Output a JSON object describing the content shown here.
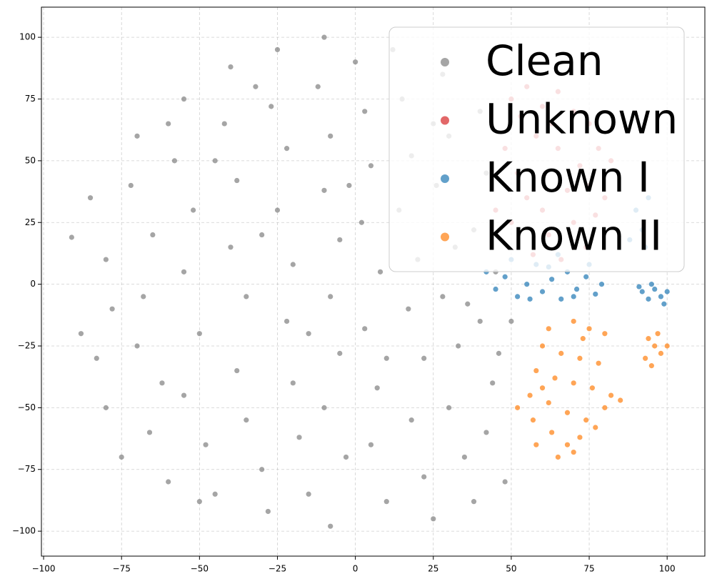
{
  "chart_data": {
    "type": "scatter",
    "xlim": [
      -100.7,
      112.1
    ],
    "ylim": [
      -110.1,
      112.2
    ],
    "xticks": [
      {
        "value": -100,
        "label": "−100"
      },
      {
        "value": -75,
        "label": "−75"
      },
      {
        "value": -50,
        "label": "−50"
      },
      {
        "value": -25,
        "label": "−25"
      },
      0,
      25,
      50,
      75,
      100
    ],
    "yticks": [
      {
        "value": -100,
        "label": "−100"
      },
      {
        "value": -75,
        "label": "−75"
      },
      {
        "value": -50,
        "label": "−50"
      },
      {
        "value": -25,
        "label": "−25"
      },
      0,
      25,
      50,
      75,
      100
    ],
    "grid": true,
    "legend": "upper right",
    "series": [
      {
        "name": "Clean",
        "color": "#7f7f7f",
        "x": [
          -91,
          -85,
          -80,
          -78,
          -83,
          -80,
          -70,
          -72,
          -65,
          -68,
          -70,
          -66,
          -60,
          -55,
          -58,
          -52,
          -55,
          -50,
          -55,
          -48,
          -45,
          -40,
          -42,
          -38,
          -40,
          -35,
          -38,
          -35,
          -30,
          -28,
          -25,
          -27,
          -22,
          -25,
          -20,
          -22,
          -20,
          -18,
          -15,
          -10,
          -12,
          -8,
          -10,
          -5,
          -8,
          -5,
          -10,
          -3,
          -8,
          0,
          3,
          5,
          2,
          8,
          3,
          7,
          5,
          10,
          12,
          15,
          18,
          14,
          20,
          17,
          22,
          18,
          22,
          25,
          28,
          30,
          26,
          32,
          28,
          33,
          30,
          35,
          38,
          40,
          42,
          38,
          45,
          40,
          44,
          42,
          48,
          -88,
          -75,
          -62,
          -45,
          -30,
          -15,
          -2,
          10,
          25,
          36,
          46,
          50,
          -60,
          -32,
          -50
        ],
        "y": [
          19,
          35,
          10,
          -10,
          -30,
          -50,
          60,
          40,
          20,
          -5,
          -25,
          -60,
          -80,
          75,
          50,
          30,
          5,
          -20,
          -45,
          -65,
          -85,
          88,
          65,
          42,
          15,
          -5,
          -35,
          -55,
          -75,
          -92,
          95,
          72,
          55,
          30,
          8,
          -15,
          -40,
          -62,
          -85,
          100,
          80,
          60,
          38,
          18,
          -5,
          -28,
          -50,
          -70,
          -98,
          90,
          70,
          48,
          25,
          5,
          -18,
          -42,
          -65,
          -88,
          95,
          75,
          52,
          30,
          10,
          -10,
          -30,
          -55,
          -78,
          -95,
          85,
          60,
          40,
          15,
          -5,
          -25,
          -50,
          -70,
          -88,
          70,
          45,
          22,
          5,
          -15,
          -40,
          -60,
          -80,
          -20,
          -70,
          -40,
          50,
          20,
          -20,
          40,
          -30,
          65,
          -8,
          -28,
          -15,
          65,
          80,
          -88
        ]
      },
      {
        "name": "Unknown",
        "color": "#d62728",
        "x": [
          50,
          55,
          60,
          65,
          70,
          75,
          78,
          82,
          72,
          65,
          58,
          52,
          55,
          60,
          68,
          75,
          80,
          50,
          62,
          70,
          57,
          66,
          74,
          48,
          63,
          53,
          77,
          45
        ],
        "y": [
          75,
          80,
          72,
          78,
          70,
          65,
          55,
          50,
          48,
          55,
          60,
          45,
          35,
          30,
          38,
          40,
          35,
          25,
          20,
          25,
          12,
          10,
          15,
          55,
          65,
          68,
          28,
          30
        ]
      },
      {
        "name": "Known I",
        "color": "#1f77b4",
        "x": [
          42,
          45,
          48,
          52,
          55,
          58,
          60,
          63,
          66,
          68,
          71,
          74,
          77,
          79,
          50,
          56,
          62,
          70,
          75,
          65,
          92,
          94,
          96,
          98,
          100,
          95,
          91,
          99,
          90,
          92,
          94,
          88,
          93
        ],
        "y": [
          5,
          -2,
          3,
          -5,
          0,
          8,
          -3,
          2,
          -6,
          5,
          -2,
          3,
          -4,
          0,
          10,
          -6,
          7,
          -5,
          8,
          12,
          -3,
          -6,
          -2,
          -5,
          -3,
          0,
          -1,
          -8,
          30,
          22,
          35,
          18,
          15
        ]
      },
      {
        "name": "Known II",
        "color": "#ff7f0e",
        "x": [
          70,
          75,
          62,
          80,
          60,
          66,
          72,
          78,
          58,
          64,
          70,
          76,
          82,
          56,
          62,
          68,
          74,
          80,
          85,
          52,
          57,
          63,
          68,
          72,
          58,
          65,
          70,
          77,
          60,
          73,
          94,
          96,
          98,
          93,
          97,
          100,
          95
        ],
        "y": [
          -15,
          -18,
          -18,
          -20,
          -25,
          -28,
          -30,
          -32,
          -35,
          -38,
          -40,
          -42,
          -45,
          -45,
          -48,
          -52,
          -55,
          -50,
          -47,
          -50,
          -55,
          -60,
          -65,
          -62,
          -65,
          -70,
          -68,
          -58,
          -42,
          -22,
          -22,
          -25,
          -28,
          -30,
          -20,
          -25,
          -33
        ]
      }
    ]
  }
}
